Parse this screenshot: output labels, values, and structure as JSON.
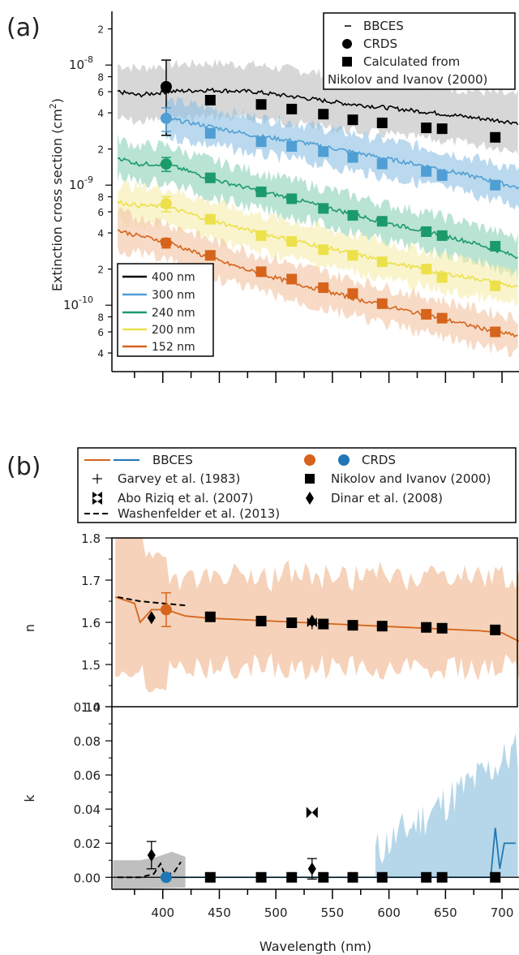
{
  "panels": {
    "a": {
      "tag": "(a)"
    },
    "b": {
      "tag": "(b)"
    }
  },
  "chart_data": [
    {
      "type": "line",
      "panel": "a",
      "ylabel": "Extinction cross section (cm",
      "ylabel_exp": "2",
      "ylabel_close": ")",
      "yscale": "log",
      "xlim": [
        355,
        715
      ],
      "ylim": [
        2.8e-11,
        2.8e-08
      ],
      "y_ticks": [
        {
          "v": 2e-08,
          "t": "2"
        },
        {
          "v": 1e-08,
          "t": "10",
          "e": "-8"
        },
        {
          "v": 8e-09,
          "t": "8"
        },
        {
          "v": 6e-09,
          "t": "6"
        },
        {
          "v": 4e-09,
          "t": "4"
        },
        {
          "v": 2e-09,
          "t": "2"
        },
        {
          "v": 1e-09,
          "t": "10",
          "e": "-9"
        },
        {
          "v": 8e-10,
          "t": "8"
        },
        {
          "v": 6e-10,
          "t": "6"
        },
        {
          "v": 4e-10,
          "t": "4"
        },
        {
          "v": 2e-10,
          "t": "2"
        },
        {
          "v": 1e-10,
          "t": "10",
          "e": "-10"
        },
        {
          "v": 8e-11,
          "t": "8"
        },
        {
          "v": 6e-11,
          "t": "6"
        },
        {
          "v": 4e-11,
          "t": "4"
        }
      ],
      "legend_top": [
        "BBCES",
        "CRDS",
        "Calculated from",
        "Nikolov and Ivanov (2000)"
      ],
      "legend_sizes": [
        "400 nm",
        "300 nm",
        "240 nm",
        "200 nm",
        "152 nm"
      ],
      "series": [
        {
          "name": "400 nm",
          "color": "#000000",
          "band": "#bdbdbd",
          "bbces": [
            [
              360,
              6e-09
            ],
            [
              370,
              5.8e-09
            ],
            [
              378,
              5.6e-09
            ],
            [
              403,
              6e-09
            ],
            [
              440,
              6.2e-09
            ],
            [
              480,
              6e-09
            ],
            [
              520,
              5.4e-09
            ],
            [
              560,
              4.8e-09
            ],
            [
              600,
              4.4e-09
            ],
            [
              640,
              4e-09
            ],
            [
              680,
              3.6e-09
            ],
            [
              715,
              3.3e-09
            ]
          ],
          "crds": {
            "x": 403,
            "y": 6.6e-09,
            "lo": 2.6e-09,
            "hi": 1.1e-08
          },
          "nikolov": [
            [
              442,
              5.1e-09
            ],
            [
              487,
              4.7e-09
            ],
            [
              514,
              4.3e-09
            ],
            [
              542,
              3.9e-09
            ],
            [
              568,
              3.5e-09
            ],
            [
              594,
              3.3e-09
            ],
            [
              633,
              3e-09
            ],
            [
              647,
              2.95e-09
            ],
            [
              694,
              2.5e-09
            ]
          ]
        },
        {
          "name": "300 nm",
          "color": "#4f9ed4",
          "band": "#8cbfe3",
          "bbces": [
            [
              403,
              3.6e-09
            ],
            [
              440,
              3.1e-09
            ],
            [
              480,
              2.6e-09
            ],
            [
              520,
              2.3e-09
            ],
            [
              560,
              1.95e-09
            ],
            [
              600,
              1.65e-09
            ],
            [
              640,
              1.4e-09
            ],
            [
              680,
              1.15e-09
            ],
            [
              715,
              9.5e-10
            ]
          ],
          "crds": {
            "x": 403,
            "y": 3.6e-09,
            "lo": 2.8e-09,
            "hi": 4.4e-09
          },
          "nikolov": [
            [
              442,
              2.7e-09
            ],
            [
              487,
              2.3e-09
            ],
            [
              514,
              2.1e-09
            ],
            [
              542,
              1.9e-09
            ],
            [
              568,
              1.7e-09
            ],
            [
              594,
              1.5e-09
            ],
            [
              633,
              1.3e-09
            ],
            [
              647,
              1.2e-09
            ],
            [
              694,
              1e-09
            ]
          ]
        },
        {
          "name": "240 nm",
          "color": "#1b9a6a",
          "band": "#8bd1b5",
          "bbces": [
            [
              360,
              1.7e-09
            ],
            [
              378,
              1.5e-09
            ],
            [
              403,
              1.5e-09
            ],
            [
              440,
              1.15e-09
            ],
            [
              480,
              9.2e-10
            ],
            [
              520,
              7.5e-10
            ],
            [
              560,
              6e-10
            ],
            [
              600,
              4.8e-10
            ],
            [
              640,
              4e-10
            ],
            [
              680,
              3.2e-10
            ],
            [
              715,
              2.5e-10
            ]
          ],
          "crds": {
            "x": 403,
            "y": 1.5e-09,
            "lo": 1.3e-09,
            "hi": 1.7e-09
          },
          "nikolov": [
            [
              442,
              1.15e-09
            ],
            [
              487,
              8.8e-10
            ],
            [
              514,
              7.7e-10
            ],
            [
              542,
              6.4e-10
            ],
            [
              568,
              5.6e-10
            ],
            [
              594,
              5e-10
            ],
            [
              633,
              4.1e-10
            ],
            [
              647,
              3.8e-10
            ],
            [
              694,
              3.1e-10
            ]
          ]
        },
        {
          "name": "200 nm",
          "color": "#ece14a",
          "band": "#f5ecaa",
          "bbces": [
            [
              360,
              7.2e-10
            ],
            [
              378,
              6.8e-10
            ],
            [
              403,
              6.6e-10
            ],
            [
              440,
              5.2e-10
            ],
            [
              480,
              4.1e-10
            ],
            [
              520,
              3.4e-10
            ],
            [
              560,
              2.8e-10
            ],
            [
              600,
              2.3e-10
            ],
            [
              640,
              1.9e-10
            ],
            [
              680,
              1.65e-10
            ],
            [
              715,
              1.4e-10
            ]
          ],
          "crds": {
            "x": 403,
            "y": 7e-10,
            "lo": 6e-10,
            "hi": 8e-10
          },
          "nikolov": [
            [
              442,
              5.2e-10
            ],
            [
              487,
              3.8e-10
            ],
            [
              514,
              3.4e-10
            ],
            [
              542,
              2.9e-10
            ],
            [
              568,
              2.6e-10
            ],
            [
              594,
              2.3e-10
            ],
            [
              633,
              2e-10
            ],
            [
              647,
              1.7e-10
            ],
            [
              694,
              1.45e-10
            ]
          ]
        },
        {
          "name": "152 nm",
          "color": "#d6641c",
          "band": "#f2c3a2",
          "bbces": [
            [
              360,
              4.2e-10
            ],
            [
              378,
              3.8e-10
            ],
            [
              403,
              3.4e-10
            ],
            [
              440,
              2.5e-10
            ],
            [
              480,
              1.9e-10
            ],
            [
              520,
              1.5e-10
            ],
            [
              560,
              1.2e-10
            ],
            [
              600,
              9.7e-11
            ],
            [
              640,
              8e-11
            ],
            [
              680,
              6.5e-11
            ],
            [
              715,
              5.5e-11
            ]
          ],
          "crds": {
            "x": 403,
            "y": 3.3e-10,
            "lo": 3e-10,
            "hi": 3.6e-10
          },
          "nikolov": [
            [
              442,
              2.6e-10
            ],
            [
              487,
              1.9e-10
            ],
            [
              514,
              1.65e-10
            ],
            [
              542,
              1.4e-10
            ],
            [
              568,
              1.25e-10
            ],
            [
              594,
              1.03e-10
            ],
            [
              633,
              8.4e-11
            ],
            [
              647,
              7.8e-11
            ],
            [
              694,
              6e-11
            ]
          ]
        }
      ]
    },
    {
      "type": "line",
      "panel": "b",
      "xlabel": "Wavelength (nm)",
      "xlim": [
        355,
        715
      ],
      "x_ticks": [
        400,
        450,
        500,
        550,
        600,
        650,
        700
      ],
      "legend": {
        "bbces": "BBCES",
        "crds": "CRDS",
        "garvey": "Garvey et al. (1983)",
        "nikolov": "Nikolov and Ivanov (2000)",
        "abo": "Abo Riziq et al. (2007)",
        "dinar": "Dinar et al. (2008)",
        "washen": "Washenfelder et al. (2013)"
      },
      "n": {
        "ylabel": "n",
        "ylim": [
          1.4,
          1.8
        ],
        "y_ticks": [
          "1.8",
          "1.7",
          "1.6",
          "1.5",
          "1.4"
        ],
        "bbces": [
          [
            358,
            1.66
          ],
          [
            375,
            1.645
          ],
          [
            380,
            1.6
          ],
          [
            390,
            1.63
          ],
          [
            403,
            1.63
          ],
          [
            420,
            1.615
          ],
          [
            440,
            1.61
          ],
          [
            480,
            1.605
          ],
          [
            520,
            1.6
          ],
          [
            560,
            1.595
          ],
          [
            600,
            1.59
          ],
          [
            640,
            1.585
          ],
          [
            680,
            1.58
          ],
          [
            700,
            1.575
          ],
          [
            715,
            1.555
          ]
        ],
        "crds": {
          "x": 403,
          "y": 1.63,
          "lo": 1.59,
          "hi": 1.67
        },
        "nikolov": [
          [
            442,
            1.613
          ],
          [
            487,
            1.603
          ],
          [
            514,
            1.599
          ],
          [
            542,
            1.596
          ],
          [
            568,
            1.593
          ],
          [
            594,
            1.591
          ],
          [
            633,
            1.588
          ],
          [
            647,
            1.586
          ],
          [
            694,
            1.582
          ]
        ],
        "garvey": [
          [
            532,
            1.595
          ]
        ],
        "abo": [
          [
            532,
            1.6
          ]
        ],
        "dinar": [
          {
            "x": 390,
            "y": 1.611,
            "err": 0.014
          },
          {
            "x": 532,
            "y": 1.603,
            "err": 0.01
          }
        ],
        "washen": [
          [
            360,
            1.66
          ],
          [
            380,
            1.65
          ],
          [
            400,
            1.645
          ],
          [
            420,
            1.64
          ]
        ]
      },
      "k": {
        "ylabel": "k",
        "ylim": [
          -0.007,
          0.1
        ],
        "y_ticks": [
          "0.10",
          "0.08",
          "0.06",
          "0.04",
          "0.02",
          "0.00"
        ],
        "bbces_orange": [
          [
            360,
            0
          ],
          [
            403,
            0
          ]
        ],
        "bbces_blue": [
          [
            403,
            0
          ],
          [
            690,
            0
          ],
          [
            694,
            0.029
          ],
          [
            698,
            0.005
          ],
          [
            702,
            0.02
          ],
          [
            712,
            0.02
          ]
        ],
        "crds": {
          "x": 403,
          "y": 0
        },
        "nikolov": [
          [
            442,
            0
          ],
          [
            487,
            0
          ],
          [
            514,
            0
          ],
          [
            542,
            0
          ],
          [
            568,
            0
          ],
          [
            594,
            0
          ],
          [
            633,
            0
          ],
          [
            647,
            0
          ],
          [
            694,
            0
          ]
        ],
        "abo": [
          [
            532,
            0.038
          ]
        ],
        "dinar": [
          {
            "x": 390,
            "y": 0.013,
            "err": 0.008
          },
          {
            "x": 532,
            "y": 0.005,
            "err": 0.006
          }
        ],
        "washen": [
          [
            360,
            0
          ],
          [
            380,
            0
          ],
          [
            392,
            0.002
          ],
          [
            398,
            0.008
          ],
          [
            402,
            0.001
          ],
          [
            410,
            0.003
          ],
          [
            416,
            0.009
          ]
        ]
      }
    }
  ]
}
